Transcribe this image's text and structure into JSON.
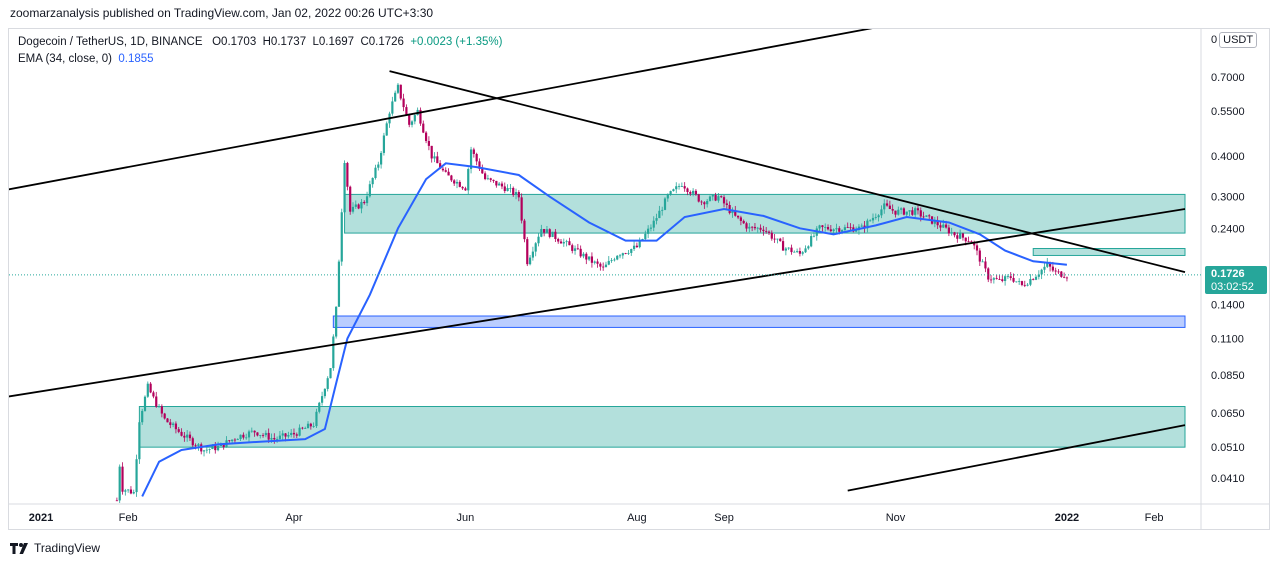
{
  "header": {
    "published": "zoomarzanalysis published on TradingView.com, Jan 02, 2022 00:26 UTC+3:30"
  },
  "legend": {
    "symbol": "Dogecoin / TetherUS, 1D, BINANCE",
    "open": "O0.1703",
    "high": "H0.1737",
    "low": "L0.1697",
    "close": "C0.1726",
    "change": "+0.0023 (+1.35%)",
    "ema_label": "EMA (34, close, 0)",
    "ema_value": "0.1855"
  },
  "price_axis": {
    "unit_prefix": "0",
    "unit": "USDT",
    "current_price": "0.1726",
    "countdown": "03:02:52"
  },
  "brand": "TradingView",
  "colors": {
    "up": "#26a69a",
    "down": "#b3005b",
    "ema": "#2962ff",
    "zone_green": "#26a69a",
    "zone_blue": "#2962ff",
    "trendline": "#000000"
  },
  "chart_data": {
    "type": "candlestick",
    "scale": "log",
    "ylim": [
      0.036,
      1.0
    ],
    "y_ticks": [
      {
        "value": 0.7,
        "label": "0.7000"
      },
      {
        "value": 0.55,
        "label": "0.5500"
      },
      {
        "value": 0.4,
        "label": "0.4000"
      },
      {
        "value": 0.3,
        "label": "0.3000"
      },
      {
        "value": 0.24,
        "label": "0.2400"
      },
      {
        "value": 0.14,
        "label": "0.1400"
      },
      {
        "value": 0.11,
        "label": "0.1100"
      },
      {
        "value": 0.085,
        "label": "0.0850"
      },
      {
        "value": 0.065,
        "label": "0.0650"
      },
      {
        "value": 0.051,
        "label": "0.0510"
      },
      {
        "value": 0.041,
        "label": "0.0410"
      }
    ],
    "x_ticks": [
      {
        "date": "2021-01-01",
        "label": "2021",
        "bold": true
      },
      {
        "date": "2021-02-01",
        "label": "Feb"
      },
      {
        "date": "2021-04-01",
        "label": "Apr"
      },
      {
        "date": "2021-06-01",
        "label": "Jun"
      },
      {
        "date": "2021-08-01",
        "label": "Aug"
      },
      {
        "date": "2021-09-01",
        "label": "Sep"
      },
      {
        "date": "2021-11-01",
        "label": "Nov"
      },
      {
        "date": "2022-01-01",
        "label": "2022",
        "bold": true
      },
      {
        "date": "2022-02-01",
        "label": "Feb"
      }
    ],
    "price_path": [
      [
        "2021-01-28",
        0.035
      ],
      [
        "2021-01-29",
        0.045
      ],
      [
        "2021-01-30",
        0.038
      ],
      [
        "2021-02-03",
        0.037
      ],
      [
        "2021-02-05",
        0.062
      ],
      [
        "2021-02-08",
        0.078
      ],
      [
        "2021-02-10",
        0.072
      ],
      [
        "2021-02-14",
        0.062
      ],
      [
        "2021-02-20",
        0.056
      ],
      [
        "2021-02-28",
        0.05
      ],
      [
        "2021-03-05",
        0.051
      ],
      [
        "2021-03-12",
        0.055
      ],
      [
        "2021-03-18",
        0.057
      ],
      [
        "2021-03-25",
        0.054
      ],
      [
        "2021-04-01",
        0.056
      ],
      [
        "2021-04-08",
        0.06
      ],
      [
        "2021-04-14",
        0.09
      ],
      [
        "2021-04-16",
        0.135
      ],
      [
        "2021-04-19",
        0.39
      ],
      [
        "2021-04-21",
        0.27
      ],
      [
        "2021-04-26",
        0.29
      ],
      [
        "2021-05-01",
        0.38
      ],
      [
        "2021-05-05",
        0.55
      ],
      [
        "2021-05-08",
        0.65
      ],
      [
        "2021-05-12",
        0.5
      ],
      [
        "2021-05-15",
        0.55
      ],
      [
        "2021-05-20",
        0.4
      ],
      [
        "2021-05-25",
        0.35
      ],
      [
        "2021-06-01",
        0.32
      ],
      [
        "2021-06-03",
        0.42
      ],
      [
        "2021-06-08",
        0.34
      ],
      [
        "2021-06-15",
        0.32
      ],
      [
        "2021-06-20",
        0.3
      ],
      [
        "2021-06-23",
        0.19
      ],
      [
        "2021-06-28",
        0.24
      ],
      [
        "2021-07-05",
        0.22
      ],
      [
        "2021-07-12",
        0.2
      ],
      [
        "2021-07-20",
        0.18
      ],
      [
        "2021-07-25",
        0.2
      ],
      [
        "2021-08-01",
        0.21
      ],
      [
        "2021-08-07",
        0.25
      ],
      [
        "2021-08-12",
        0.3
      ],
      [
        "2021-08-17",
        0.33
      ],
      [
        "2021-08-24",
        0.29
      ],
      [
        "2021-08-30",
        0.3
      ],
      [
        "2021-09-05",
        0.26
      ],
      [
        "2021-09-10",
        0.24
      ],
      [
        "2021-09-15",
        0.24
      ],
      [
        "2021-09-22",
        0.21
      ],
      [
        "2021-09-28",
        0.2
      ],
      [
        "2021-10-05",
        0.24
      ],
      [
        "2021-10-12",
        0.24
      ],
      [
        "2021-10-20",
        0.24
      ],
      [
        "2021-10-28",
        0.28
      ],
      [
        "2021-11-01",
        0.27
      ],
      [
        "2021-11-08",
        0.27
      ],
      [
        "2021-11-15",
        0.25
      ],
      [
        "2021-11-22",
        0.23
      ],
      [
        "2021-11-28",
        0.22
      ],
      [
        "2021-12-04",
        0.17
      ],
      [
        "2021-12-08",
        0.165
      ],
      [
        "2021-12-12",
        0.17
      ],
      [
        "2021-12-16",
        0.16
      ],
      [
        "2021-12-20",
        0.17
      ],
      [
        "2021-12-25",
        0.185
      ],
      [
        "2021-12-28",
        0.175
      ],
      [
        "2022-01-01",
        0.1726
      ]
    ],
    "ema_path": [
      [
        "2021-02-06",
        0.036
      ],
      [
        "2021-02-12",
        0.046
      ],
      [
        "2021-02-20",
        0.05
      ],
      [
        "2021-03-05",
        0.052
      ],
      [
        "2021-03-20",
        0.053
      ],
      [
        "2021-04-05",
        0.054
      ],
      [
        "2021-04-12",
        0.058
      ],
      [
        "2021-04-16",
        0.08
      ],
      [
        "2021-04-20",
        0.11
      ],
      [
        "2021-04-28",
        0.15
      ],
      [
        "2021-05-08",
        0.24
      ],
      [
        "2021-05-18",
        0.34
      ],
      [
        "2021-05-25",
        0.38
      ],
      [
        "2021-06-05",
        0.37
      ],
      [
        "2021-06-20",
        0.35
      ],
      [
        "2021-07-01",
        0.3
      ],
      [
        "2021-07-15",
        0.25
      ],
      [
        "2021-07-28",
        0.22
      ],
      [
        "2021-08-08",
        0.22
      ],
      [
        "2021-08-18",
        0.26
      ],
      [
        "2021-09-01",
        0.275
      ],
      [
        "2021-09-15",
        0.262
      ],
      [
        "2021-09-28",
        0.24
      ],
      [
        "2021-10-10",
        0.23
      ],
      [
        "2021-10-25",
        0.245
      ],
      [
        "2021-11-05",
        0.26
      ],
      [
        "2021-11-20",
        0.25
      ],
      [
        "2021-12-01",
        0.23
      ],
      [
        "2021-12-10",
        0.205
      ],
      [
        "2021-12-20",
        0.19
      ],
      [
        "2022-01-01",
        0.1855
      ]
    ],
    "zones": [
      {
        "color": "green",
        "from": "2021-04-19",
        "to": "2022-02-12",
        "low": 0.232,
        "high": 0.305
      },
      {
        "color": "green",
        "from": "2021-12-20",
        "to": "2022-02-12",
        "low": 0.198,
        "high": 0.208
      },
      {
        "color": "blue",
        "from": "2021-04-15",
        "to": "2022-02-12",
        "low": 0.119,
        "high": 0.129
      },
      {
        "color": "green",
        "from": "2021-02-05",
        "to": "2022-02-12",
        "low": 0.051,
        "high": 0.068
      }
    ],
    "trendlines": [
      {
        "from": [
          "2020-12-01",
          0.294
        ],
        "to": [
          "2021-11-01",
          1.02
        ]
      },
      {
        "from": [
          "2020-12-01",
          0.0686
        ],
        "to": [
          "2022-02-12",
          0.275
        ]
      },
      {
        "from": [
          "2021-05-05",
          0.73
        ],
        "to": [
          "2022-02-12",
          0.176
        ]
      },
      {
        "from": [
          "2021-10-15",
          0.0375
        ],
        "to": [
          "2022-02-12",
          0.0596
        ]
      }
    ],
    "last_price": 0.1726
  }
}
